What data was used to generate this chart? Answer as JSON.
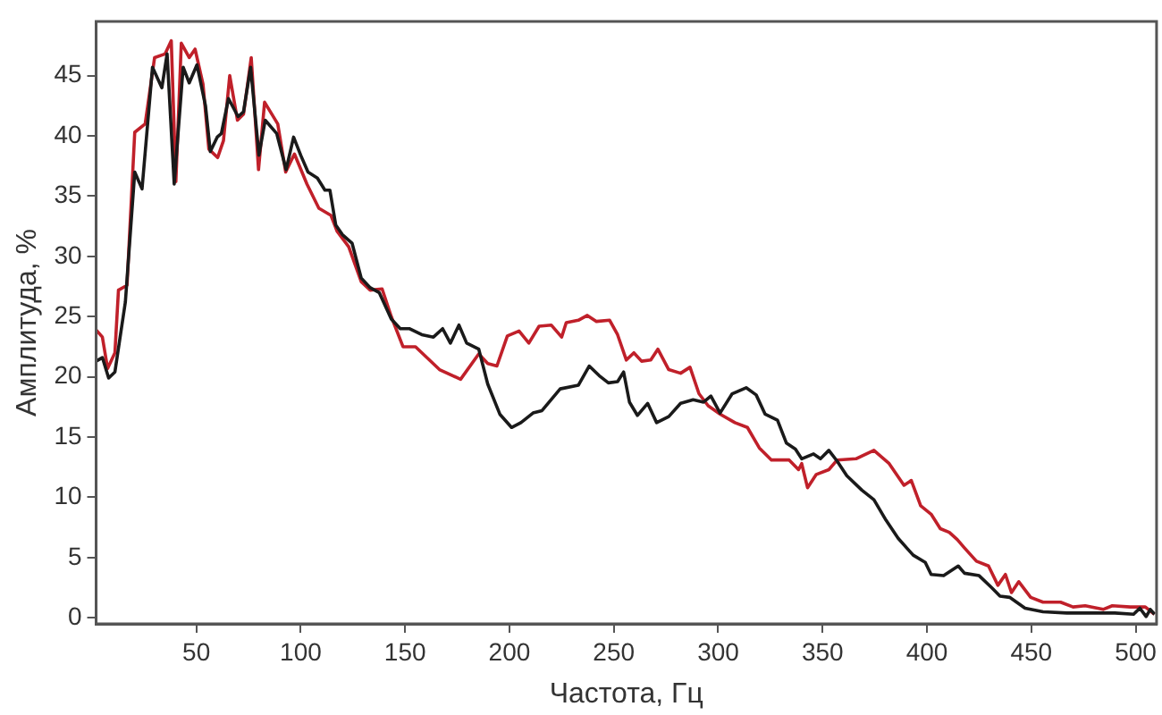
{
  "chart_data": {
    "type": "line",
    "xlabel": "Частота, Гц",
    "ylabel": "Амплитуда, %",
    "xlim": [
      2,
      510
    ],
    "ylim": [
      -0.5,
      49.5
    ],
    "xticks": [
      50,
      100,
      150,
      200,
      250,
      300,
      350,
      400,
      450,
      500
    ],
    "yticks": [
      0,
      5,
      10,
      15,
      20,
      25,
      30,
      35,
      40,
      45
    ],
    "grid": false,
    "legend": false,
    "marker": "none",
    "series": [
      {
        "color": "#1a1a1a",
        "x": [
          2,
          5,
          8,
          11,
          16,
          20.5,
          24,
          29,
          33.5,
          36,
          39.4,
          43.7,
          46.6,
          50.3,
          54.4,
          56.7,
          60,
          62,
          65.4,
          70,
          72.6,
          76,
          80,
          83,
          88.5,
          93,
          96.6,
          100,
          103.5,
          108,
          111.6,
          114,
          116.8,
          120,
          124.6,
          129,
          133.3,
          137.6,
          143.4,
          147.7,
          152,
          158,
          163.6,
          168,
          171.7,
          175.8,
          179.5,
          185.3,
          189.6,
          195.4,
          201,
          205.5,
          211.3,
          215.6,
          224.3,
          233,
          238.2,
          243,
          247.4,
          251.8,
          254.7,
          257.5,
          261.3,
          266.2,
          270.5,
          276.3,
          282,
          288,
          293,
          296.5,
          300.9,
          306.7,
          313.4,
          318.2,
          322.5,
          328.4,
          332.7,
          337,
          340,
          345.7,
          349,
          353,
          357,
          361.6,
          368.8,
          374.6,
          380.4,
          386.2,
          393.4,
          399.2,
          402,
          408,
          415,
          418,
          425,
          431,
          435,
          439.6,
          447,
          455.6,
          467,
          478.7,
          490,
          499,
          502,
          505,
          507,
          509
        ],
        "values": [
          21.3,
          21.6,
          19.9,
          20.4,
          26.2,
          37,
          35.6,
          45.7,
          44,
          46.8,
          36,
          45.7,
          44.4,
          45.9,
          42.5,
          38.7,
          39.9,
          40.2,
          43.1,
          41.6,
          42,
          45.7,
          38.4,
          41.3,
          40.2,
          37.2,
          39.9,
          38.4,
          37,
          36.5,
          35.5,
          35.5,
          32.6,
          31.8,
          31.1,
          28.2,
          27.4,
          27,
          24.8,
          24,
          24,
          23.5,
          23.3,
          24,
          22.8,
          24.3,
          22.8,
          22.3,
          19.4,
          16.9,
          15.8,
          16.2,
          17,
          17.2,
          19,
          19.3,
          20.9,
          20.1,
          19.5,
          19.6,
          20.4,
          17.9,
          16.8,
          17.8,
          16.2,
          16.7,
          17.8,
          18.1,
          17.9,
          18.4,
          17,
          18.6,
          19.1,
          18.5,
          16.9,
          16.4,
          14.5,
          14,
          13.2,
          13.6,
          13.2,
          13.9,
          13,
          11.8,
          10.6,
          9.8,
          8.1,
          6.6,
          5.2,
          4.6,
          3.6,
          3.5,
          4.3,
          3.7,
          3.5,
          2.5,
          1.8,
          1.7,
          0.8,
          0.5,
          0.4,
          0.4,
          0.4,
          0.3,
          0.8,
          0.1,
          0.7,
          0.3
        ]
      },
      {
        "color": "#c0202a",
        "x": [
          2,
          5,
          7.5,
          11,
          12.7,
          16.8,
          20.5,
          25.5,
          30,
          35,
          38,
          40.2,
          42.8,
          46.6,
          49.4,
          53.2,
          56,
          60.2,
          63,
          66,
          69.7,
          72.6,
          76.3,
          79.8,
          82.7,
          89,
          92.8,
          97,
          103,
          108.7,
          114.5,
          117.4,
          123,
          129,
          133.3,
          139,
          143.4,
          149,
          155,
          166.5,
          176.6,
          185.3,
          189.6,
          194,
          199,
          204.6,
          209.3,
          214.2,
          220,
          225,
          227.2,
          233,
          237.3,
          241.7,
          248,
          251.8,
          256,
          259.6,
          263.3,
          267.7,
          271.1,
          276.3,
          282,
          286.5,
          290.8,
          295.2,
          301,
          308,
          314,
          319.7,
          325.5,
          334,
          338.5,
          340,
          342.8,
          347,
          353,
          357,
          366,
          374.6,
          381.9,
          389,
          392.5,
          397,
          402,
          406.4,
          410.7,
          414.5,
          418,
          423.7,
          429.5,
          434,
          437.6,
          440.5,
          444,
          449.7,
          455.6,
          464,
          470,
          475.8,
          484.4,
          488.8,
          497.4,
          504.6,
          509
        ],
        "values": [
          23.9,
          23.3,
          20.7,
          22,
          27.2,
          27.6,
          40.3,
          41,
          46.5,
          46.8,
          47.9,
          36.2,
          47.7,
          46.5,
          47.2,
          44.3,
          38.9,
          38.2,
          39.6,
          45,
          41.3,
          41.8,
          46.5,
          37.2,
          42.8,
          41,
          37,
          38.5,
          36,
          34,
          33.4,
          32.1,
          30.8,
          27.9,
          27.2,
          27.3,
          25,
          22.5,
          22.5,
          20.6,
          19.8,
          21.9,
          21.1,
          20.9,
          23.4,
          23.8,
          22.8,
          24.2,
          24.3,
          23.3,
          24.5,
          24.7,
          25.1,
          24.6,
          24.7,
          23.5,
          21.4,
          22,
          21.3,
          21.4,
          22.3,
          20.6,
          20.3,
          20.8,
          18.6,
          17.6,
          16.9,
          16.2,
          15.8,
          14.1,
          13.1,
          13.1,
          12.3,
          12.8,
          10.8,
          11.9,
          12.3,
          13.1,
          13.2,
          13.9,
          12.8,
          11,
          11.4,
          9.3,
          8.6,
          7.4,
          7.1,
          6.5,
          5.8,
          4.7,
          4.3,
          2.7,
          3.6,
          2.1,
          3,
          1.7,
          1.3,
          1.3,
          0.9,
          1,
          0.7,
          1,
          0.9,
          0.9,
          0.3
        ]
      }
    ]
  }
}
